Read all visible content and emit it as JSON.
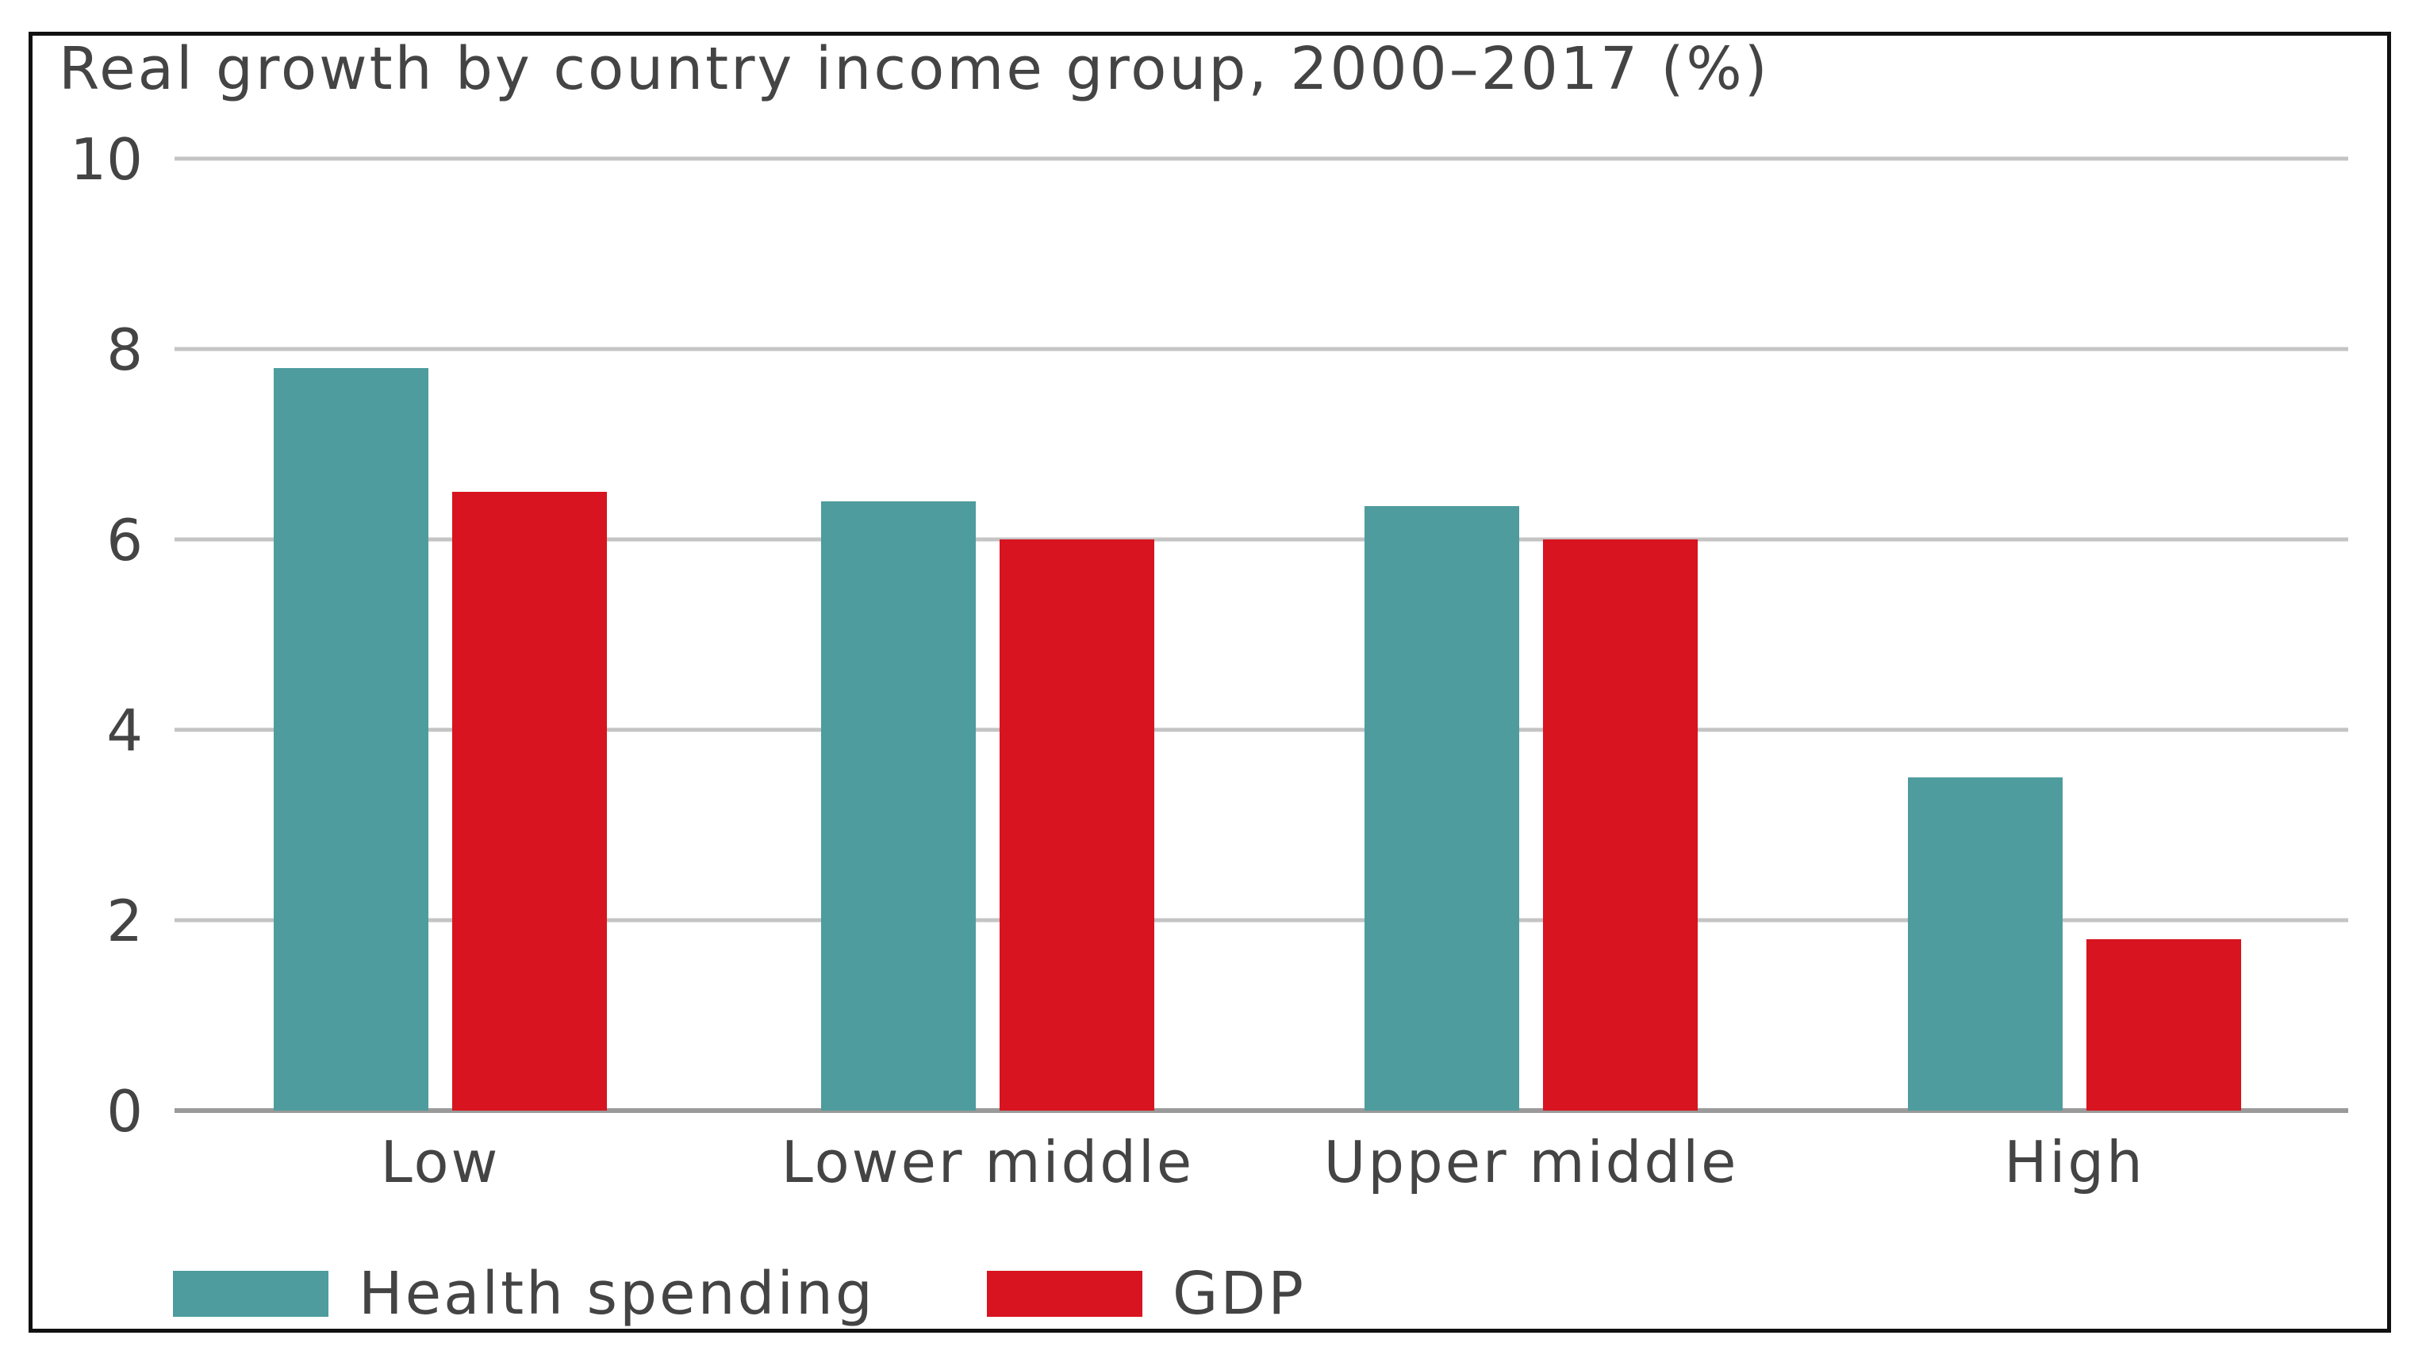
{
  "chart_data": {
    "type": "bar",
    "title": "Real growth by country income group, 2000–2017 (%)",
    "xlabel": "",
    "ylabel": "",
    "ylim": [
      0,
      10
    ],
    "yticks": [
      0,
      2,
      4,
      6,
      8,
      10
    ],
    "grid": true,
    "legend_position": "bottom-left",
    "categories": [
      "Low",
      "Lower middle",
      "Upper middle",
      "High"
    ],
    "series": [
      {
        "name": "Health spending",
        "color": "#4e9c9d",
        "values": [
          7.8,
          6.4,
          6.35,
          3.5
        ]
      },
      {
        "name": "GDP",
        "color": "#d7141f",
        "values": [
          6.5,
          6.0,
          6.0,
          1.8
        ]
      }
    ]
  }
}
